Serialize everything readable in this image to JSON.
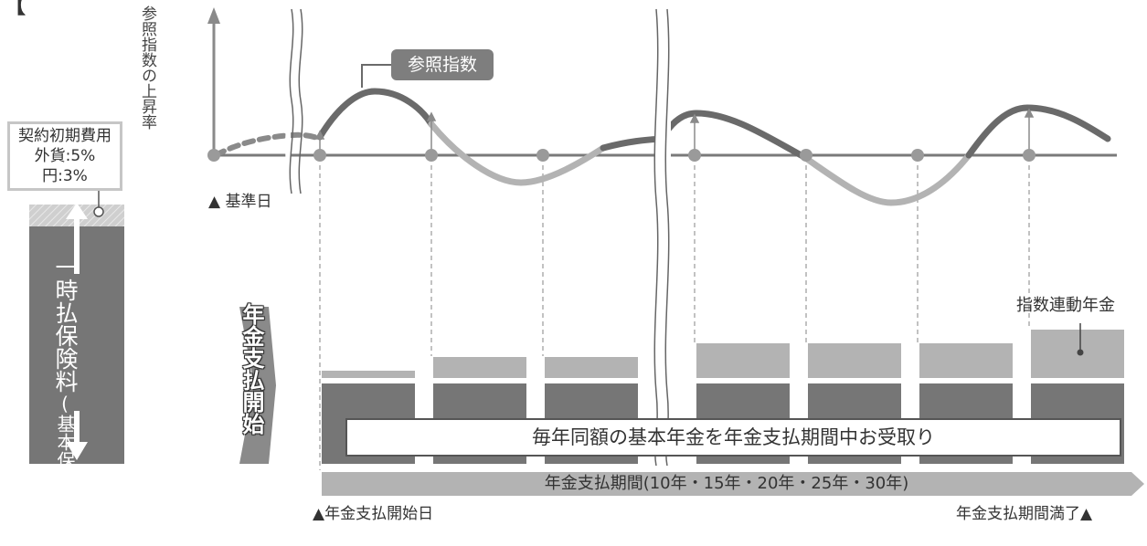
{
  "title_fragment": "【",
  "y_axis_label": "参照指数の上昇率",
  "index_tag": "参照指数",
  "base_date_label": "▲ 基準日",
  "initial_cost": {
    "heading": "契約初期費用",
    "foreign": "外貨:5%",
    "yen": "円:3%"
  },
  "premium_label": "一時払保険料",
  "premium_sublabel": "(基本保険金額)",
  "annuity_start_label": "年金支払開始",
  "index_annuity_label": "指数連動年金",
  "base_annuity_banner": "毎年同額の基本年金を年金支払期間中お受取り",
  "payment_period_label": "年金支払期間(10年・15年・20年・25年・30年)",
  "start_date_label": "▲年金支払開始日",
  "end_label": "年金支払期間満了▲",
  "colors": {
    "dark_gray": "#767676",
    "light_gray": "#b3b3b3",
    "line_gray": "#8a8a8a",
    "text": "#333333"
  }
}
